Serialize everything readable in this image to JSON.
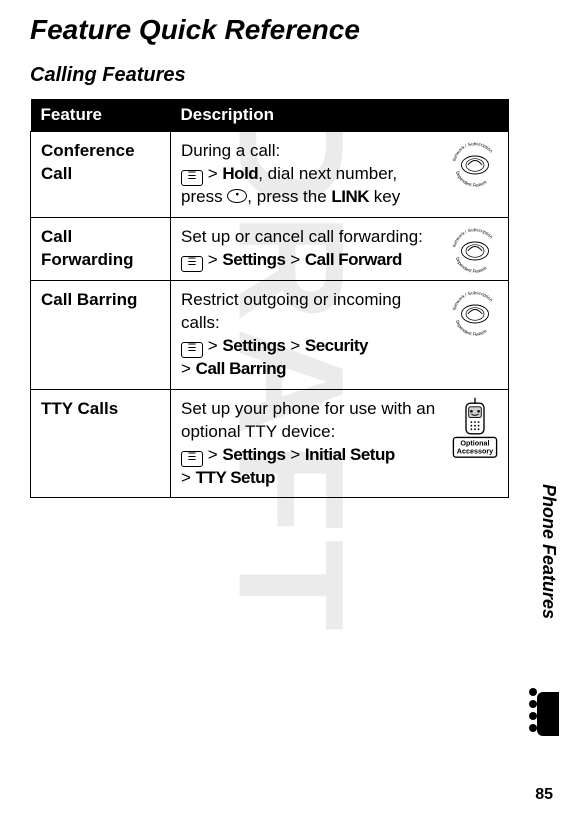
{
  "title": "Feature Quick Reference",
  "subtitle": "Calling Features",
  "watermark": "DRAFT",
  "side_label": "Phone Features",
  "page_number": "85",
  "table": {
    "headers": {
      "feature": "Feature",
      "description": "Description"
    },
    "badge_text": {
      "top": "Network / Subscription",
      "bottom": "Dependent Feature"
    },
    "accessory_label": "Optional Accessory",
    "rows": [
      {
        "feature": "Conference Call",
        "desc_intro": "During a call:",
        "path_prefix": "",
        "path_items": [
          "Hold"
        ],
        "desc_tail": ", dial next number, press ",
        "desc_tail2": ", press the ",
        "link_key": "LINK",
        "desc_tail3": " key",
        "has_round_key": true,
        "badge": "network"
      },
      {
        "feature": "Call Forwarding",
        "desc_intro": "Set up or cancel call forwarding:",
        "path_items": [
          "Settings",
          "Call Forward"
        ],
        "badge": "network"
      },
      {
        "feature": "Call Barring",
        "desc_intro": "Restrict outgoing or incoming calls:",
        "path_items": [
          "Settings",
          "Security",
          "Call Barring"
        ],
        "badge": "network"
      },
      {
        "feature": "TTY Calls",
        "desc_intro": "Set up your phone for use with an optional TTY device:",
        "path_items": [
          "Settings",
          "Initial Setup",
          "TTY Setup"
        ],
        "badge": "accessory"
      }
    ]
  },
  "colors": {
    "header_bg": "#000000",
    "header_fg": "#ffffff",
    "text": "#000000"
  }
}
